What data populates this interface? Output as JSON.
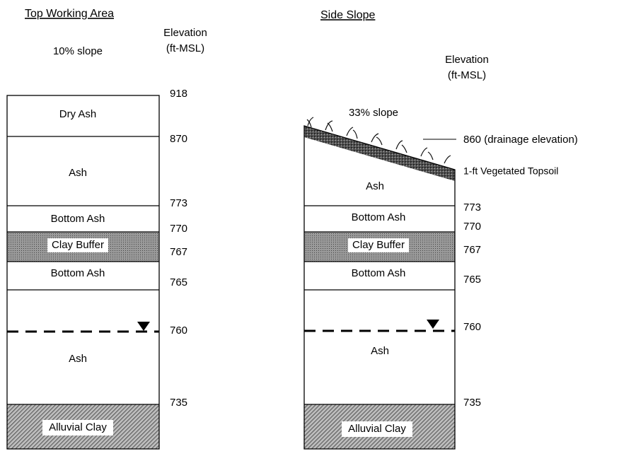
{
  "left": {
    "title": "Top Working Area",
    "slope": "10% slope",
    "elevation_header": [
      "Elevation",
      "(ft-MSL)"
    ],
    "layers": [
      "Dry Ash",
      "Ash",
      "Bottom Ash",
      "Clay Buffer",
      "Bottom Ash",
      "Ash",
      "Alluvial Clay"
    ],
    "elevations": [
      "918",
      "870",
      "773",
      "770",
      "767",
      "765",
      "760",
      "735"
    ]
  },
  "right": {
    "title": "Side Slope",
    "slope": "33% slope",
    "elevation_header": [
      "Elevation",
      "(ft-MSL)"
    ],
    "layers": [
      "Ash",
      "Bottom Ash",
      "Clay Buffer",
      "Bottom Ash",
      "Ash",
      "Alluvial Clay"
    ],
    "elevations": [
      "860 (drainage elevation)",
      "773",
      "770",
      "767",
      "765",
      "760",
      "735"
    ],
    "topsoil_note": "1-ft  Vegetated Topsoil"
  }
}
